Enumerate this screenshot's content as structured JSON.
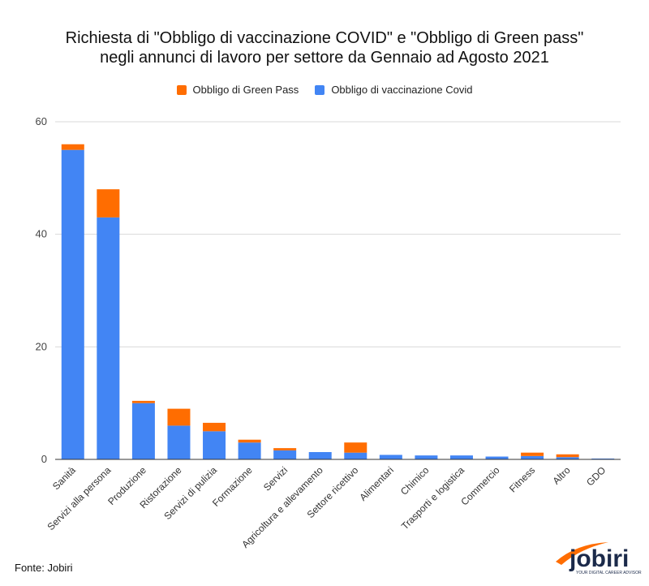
{
  "chart_data": {
    "type": "bar",
    "stacked": true,
    "title": [
      "Richiesta di \"Obbligo di vaccinazione COVID\" e \"Obbligo di Green pass\"",
      "negli annunci di lavoro per settore da Gennaio ad Agosto 2021"
    ],
    "xlabel": "",
    "ylabel": "",
    "ylim": [
      0,
      60
    ],
    "yticks": [
      0,
      20,
      40,
      60
    ],
    "grid": true,
    "legend_position": "top",
    "categories": [
      "Sanità",
      "Servizi alla persona",
      "Produzione",
      "Ristorazione",
      "Servizi di pulizia",
      "Formazione",
      "Servizi",
      "Agricoltura e allevamento",
      "Settore ricettivo",
      "Alimentari",
      "Chimico",
      "Trasporti e logistica",
      "Commercio",
      "Fitness",
      "Altro",
      "GDO"
    ],
    "series": [
      {
        "name": "Obbligo di vaccinazione Covid",
        "color": "#4285f4",
        "values": [
          55,
          43,
          10,
          6,
          5,
          3,
          1.6,
          1.3,
          1.2,
          0.8,
          0.7,
          0.7,
          0.5,
          0.6,
          0.4,
          0.15
        ]
      },
      {
        "name": "Obbligo di Green Pass",
        "color": "#ff6d01",
        "values": [
          1,
          5,
          0.4,
          3,
          1.5,
          0.5,
          0.4,
          0,
          1.8,
          0,
          0,
          0,
          0,
          0.6,
          0.5,
          0
        ]
      }
    ],
    "legend_order": [
      1,
      0
    ]
  },
  "source": "Fonte: Jobiri",
  "logo": {
    "name": "jobiri",
    "tagline": "YOUR DIGITAL CAREER ADVISOR"
  }
}
